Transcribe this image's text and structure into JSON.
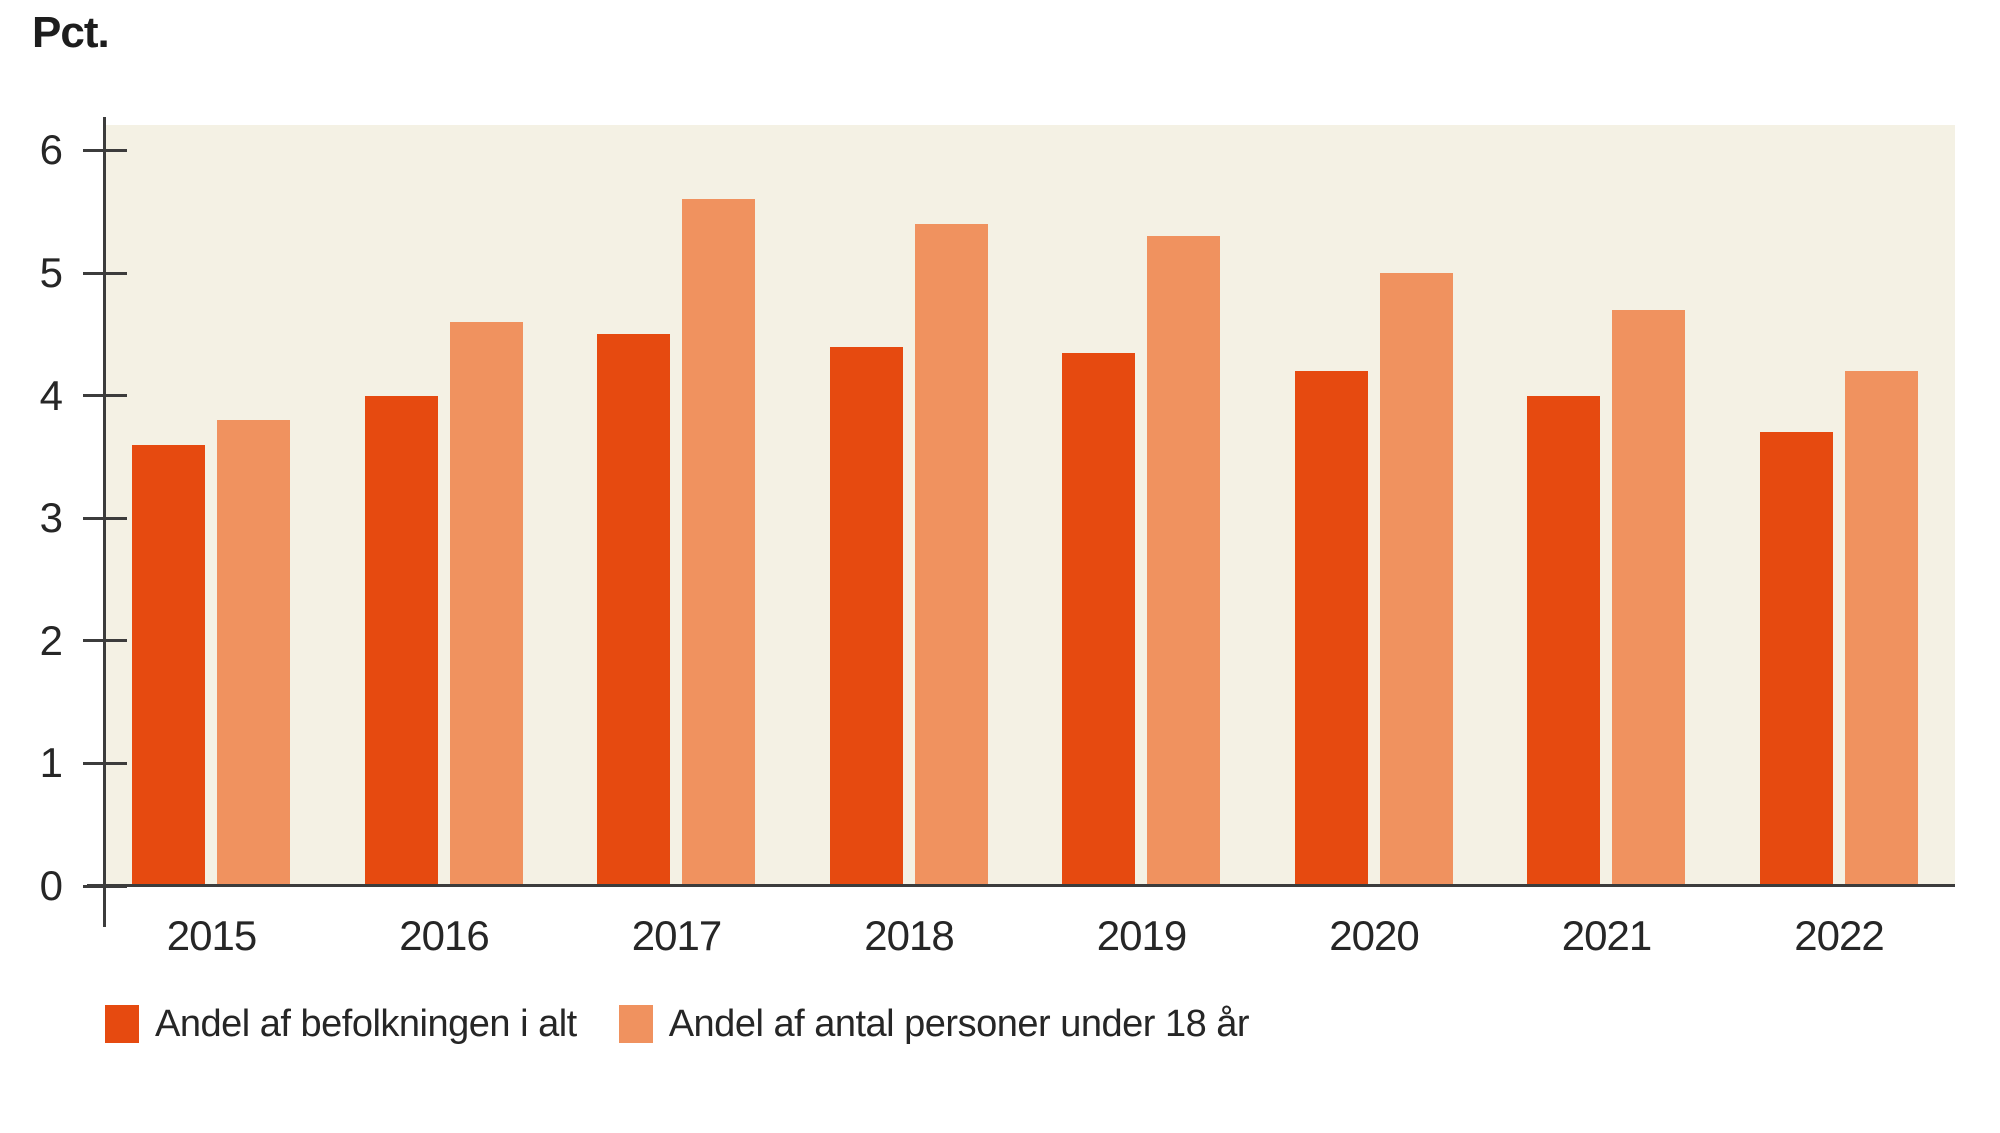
{
  "y_axis_title": "Pct.",
  "chart_data": {
    "type": "bar",
    "title": "",
    "ylabel": "Pct.",
    "xlabel": "",
    "categories": [
      "2015",
      "2016",
      "2017",
      "2018",
      "2019",
      "2020",
      "2021",
      "2022"
    ],
    "series": [
      {
        "name": "Andel af befolkningen i alt",
        "color": "#e64a10",
        "values": [
          3.6,
          4.0,
          4.5,
          4.4,
          4.35,
          4.2,
          4.0,
          3.7
        ]
      },
      {
        "name": "Andel af antal personer under 18 år",
        "color": "#f0925f",
        "values": [
          3.8,
          4.6,
          5.6,
          5.4,
          5.3,
          5.0,
          4.7,
          4.2
        ]
      }
    ],
    "y_ticks": [
      0,
      1,
      2,
      3,
      4,
      5,
      6
    ],
    "ylim": [
      0,
      6.2
    ],
    "grid": "off",
    "legend_position": "bottom-left",
    "plot_background": "#f4f1e4",
    "axis_color": "#3c3c3c",
    "text_color": "#262626"
  }
}
